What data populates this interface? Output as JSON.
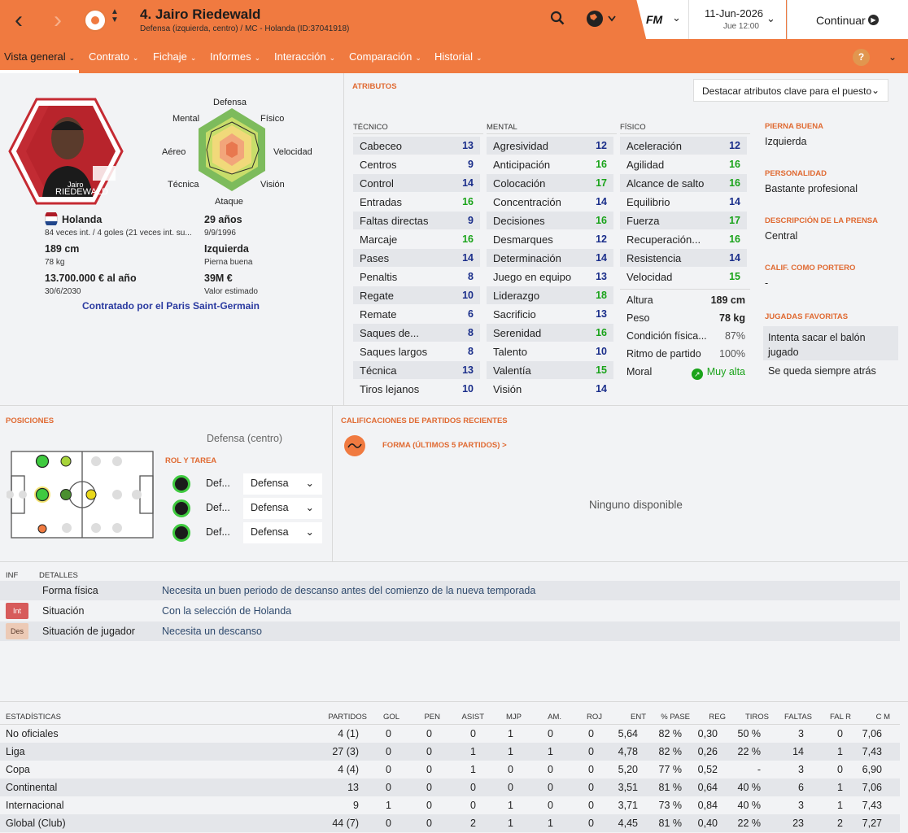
{
  "header": {
    "title": "4. Jairo Riedewald",
    "subtitle": "Defensa (izquierda, centro) / MC - Holanda (ID:37041918)",
    "fm_label": "FM",
    "date": "11-Jun-2026",
    "time": "Jue 12:00",
    "continue": "Continuar",
    "accent": "#f07a40"
  },
  "menu": [
    "Vista general",
    "Contrato",
    "Fichaje",
    "Informes",
    "Interacción",
    "Comparación",
    "Historial"
  ],
  "radar": {
    "top": "Defensa",
    "topright": "Físico",
    "right": "Velocidad",
    "bottomright": "Visión",
    "bottom": "Ataque",
    "bottomleft": "Técnica",
    "left": "Aéreo",
    "topleft": "Mental"
  },
  "card": {
    "name": "Jairo",
    "surname": "RIEDEWALD"
  },
  "bio": {
    "nation": "Holanda",
    "caps": "84 veces int. / 4 goles (21 veces int. su...",
    "age": "29 años",
    "dob": "9/9/1996",
    "height": "189 cm",
    "weight": "78 kg",
    "foot": "Izquierda",
    "foot_label": "Pierna buena",
    "wage": "13.700.000 € al año",
    "expiry": "30/6/2030",
    "value": "39M €",
    "value_label": "Valor estimado",
    "contracted": "Contratado por el Paris Saint-Germain"
  },
  "attributes": {
    "title": "ATRIBUTOS",
    "highlight": "Destacar atributos clave para el puesto",
    "tecnico_label": "TÉCNICO",
    "mental_label": "MENTAL",
    "fisico_label": "FÍSICO",
    "tecnico": [
      [
        "Cabeceo",
        "13"
      ],
      [
        "Centros",
        "9"
      ],
      [
        "Control",
        "14"
      ],
      [
        "Entradas",
        "16"
      ],
      [
        "Faltas directas",
        "9"
      ],
      [
        "Marcaje",
        "16"
      ],
      [
        "Pases",
        "14"
      ],
      [
        "Penaltis",
        "8"
      ],
      [
        "Regate",
        "10"
      ],
      [
        "Remate",
        "6"
      ],
      [
        "Saques de...",
        "8"
      ],
      [
        "Saques largos",
        "8"
      ],
      [
        "Técnica",
        "13"
      ],
      [
        "Tiros lejanos",
        "10"
      ]
    ],
    "mental": [
      [
        "Agresividad",
        "12"
      ],
      [
        "Anticipación",
        "16"
      ],
      [
        "Colocación",
        "17"
      ],
      [
        "Concentración",
        "14"
      ],
      [
        "Decisiones",
        "16"
      ],
      [
        "Desmarques",
        "12"
      ],
      [
        "Determinación",
        "14"
      ],
      [
        "Juego en equipo",
        "13"
      ],
      [
        "Liderazgo",
        "18"
      ],
      [
        "Sacrificio",
        "13"
      ],
      [
        "Serenidad",
        "16"
      ],
      [
        "Talento",
        "10"
      ],
      [
        "Valentía",
        "15"
      ],
      [
        "Visión",
        "14"
      ]
    ],
    "fisico": [
      [
        "Aceleración",
        "12"
      ],
      [
        "Agilidad",
        "16"
      ],
      [
        "Alcance de salto",
        "16"
      ],
      [
        "Equilibrio",
        "14"
      ],
      [
        "Fuerza",
        "17"
      ],
      [
        "Recuperación...",
        "16"
      ],
      [
        "Resistencia",
        "14"
      ],
      [
        "Velocidad",
        "15"
      ]
    ],
    "info": [
      [
        "Altura",
        "189 cm"
      ],
      [
        "Peso",
        "78 kg"
      ],
      [
        "Condición física...",
        "87%"
      ],
      [
        "Ritmo de partido",
        "100%"
      ],
      [
        "Moral",
        "Muy alta"
      ]
    ]
  },
  "side": {
    "foot_label": "PIERNA BUENA",
    "foot": "Izquierda",
    "pers_label": "PERSONALIDAD",
    "pers": "Bastante profesional",
    "press_label": "DESCRIPCIÓN DE LA PRENSA",
    "press": "Central",
    "gk_label": "CALIF. COMO PORTERO",
    "gk": "-",
    "fav_label": "JUGADAS FAVORITAS",
    "fav1": "Intenta sacar el balón jugado",
    "fav2": "Se queda siempre atrás"
  },
  "positions": {
    "title": "POSICIONES",
    "current": "Defensa (centro)",
    "role_title": "ROL Y TAREA",
    "roles": [
      [
        "Def...",
        "Defensa"
      ],
      [
        "Def...",
        "Defensa"
      ],
      [
        "Def...",
        "Defensa"
      ]
    ]
  },
  "ratings": {
    "title": "CALIFICACIONES DE PARTIDOS RECIENTES",
    "form": "FORMA (ÚLTIMOS 5 PARTIDOS) >",
    "none": "Ninguno disponible"
  },
  "details": {
    "h1": "INF",
    "h2": "DETALLES",
    "rows": [
      [
        "",
        "Forma física",
        "Necesita un buen periodo de descanso antes del comienzo de la nueva temporada"
      ],
      [
        "Int",
        "Situación",
        "Con la selección de Holanda"
      ],
      [
        "Des",
        "Situación de jugador",
        "Necesita un descanso"
      ]
    ]
  },
  "stats": {
    "title": "ESTADÍSTICAS",
    "cols": [
      "PARTIDOS",
      "GOL",
      "PEN",
      "ASIST",
      "MJP",
      "AM.",
      "ROJ",
      "ENT",
      "% PASE",
      "REG",
      "TIROS",
      "FALTAS",
      "FAL R",
      "C M"
    ],
    "rows": [
      [
        "No oficiales",
        "4 (1)",
        "0",
        "0",
        "0",
        "1",
        "0",
        "0",
        "5,64",
        "82 %",
        "0,30",
        "50 %",
        "3",
        "0",
        "7,06"
      ],
      [
        "Liga",
        "27 (3)",
        "0",
        "0",
        "1",
        "1",
        "1",
        "0",
        "4,78",
        "82 %",
        "0,26",
        "22 %",
        "14",
        "1",
        "7,43"
      ],
      [
        "Copa",
        "4 (4)",
        "0",
        "0",
        "1",
        "0",
        "0",
        "0",
        "5,20",
        "77 %",
        "0,52",
        "-",
        "3",
        "0",
        "6,90"
      ],
      [
        "Continental",
        "13",
        "0",
        "0",
        "0",
        "0",
        "0",
        "0",
        "3,51",
        "81 %",
        "0,64",
        "40 %",
        "6",
        "1",
        "7,06"
      ],
      [
        "Internacional",
        "9",
        "1",
        "0",
        "0",
        "1",
        "0",
        "0",
        "3,71",
        "73 %",
        "0,84",
        "40 %",
        "3",
        "1",
        "7,43"
      ],
      [
        "Global (Club)",
        "44 (7)",
        "0",
        "0",
        "2",
        "1",
        "1",
        "0",
        "4,45",
        "81 %",
        "0,40",
        "22 %",
        "23",
        "2",
        "7,27"
      ]
    ]
  }
}
